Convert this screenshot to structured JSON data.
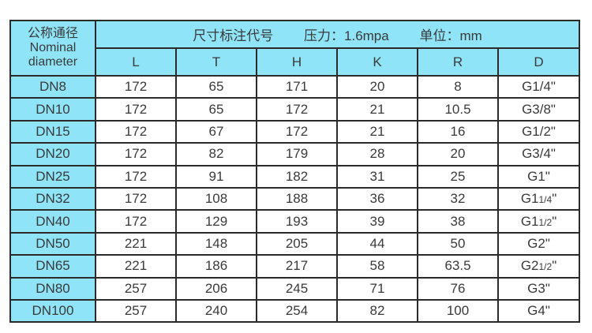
{
  "header": {
    "nominal_cn": "公称通径",
    "nominal_en_1": "Nominal",
    "nominal_en_2": "diameter",
    "dims_label": "尺寸标注代号",
    "pressure": "压力：1.6mpa",
    "unit": "单位：mm",
    "columns": [
      "L",
      "T",
      "H",
      "K",
      "R",
      "D"
    ]
  },
  "colors": {
    "header_bg": "#8fe4f8",
    "border": "#2a2a2a"
  },
  "rows": [
    {
      "dn": "DN8",
      "L": "172",
      "T": "65",
      "H": "171",
      "K": "20",
      "R": "8",
      "D": {
        "main": "G1/4\"",
        "frac": "",
        "suffix": ""
      }
    },
    {
      "dn": "DN10",
      "L": "172",
      "T": "65",
      "H": "172",
      "K": "21",
      "R": "10.5",
      "D": {
        "main": "G3/8\"",
        "frac": "",
        "suffix": ""
      }
    },
    {
      "dn": "DN15",
      "L": "172",
      "T": "67",
      "H": "172",
      "K": "21",
      "R": "16",
      "D": {
        "main": "G1/2\"",
        "frac": "",
        "suffix": ""
      }
    },
    {
      "dn": "DN20",
      "L": "172",
      "T": "82",
      "H": "179",
      "K": "28",
      "R": "20",
      "D": {
        "main": "G3/4\"",
        "frac": "",
        "suffix": ""
      }
    },
    {
      "dn": "DN25",
      "L": "172",
      "T": "91",
      "H": "182",
      "K": "31",
      "R": "25",
      "D": {
        "main": "G1\"",
        "frac": "",
        "suffix": ""
      }
    },
    {
      "dn": "DN32",
      "L": "172",
      "T": "108",
      "H": "188",
      "K": "36",
      "R": "32",
      "D": {
        "main": "G1",
        "frac": "1/4",
        "suffix": "\""
      }
    },
    {
      "dn": "DN40",
      "L": "172",
      "T": "129",
      "H": "193",
      "K": "39",
      "R": "38",
      "D": {
        "main": "G1",
        "frac": "1/2",
        "suffix": "\""
      }
    },
    {
      "dn": "DN50",
      "L": "221",
      "T": "148",
      "H": "205",
      "K": "44",
      "R": "50",
      "D": {
        "main": "G2\"",
        "frac": "",
        "suffix": ""
      }
    },
    {
      "dn": "DN65",
      "L": "221",
      "T": "186",
      "H": "217",
      "K": "58",
      "R": "63.5",
      "D": {
        "main": "G2",
        "frac": "1/2",
        "suffix": "\""
      }
    },
    {
      "dn": "DN80",
      "L": "257",
      "T": "206",
      "H": "245",
      "K": "71",
      "R": "76",
      "D": {
        "main": "G3\"",
        "frac": "",
        "suffix": ""
      }
    },
    {
      "dn": "DN100",
      "L": "257",
      "T": "240",
      "H": "254",
      "K": "82",
      "R": "100",
      "D": {
        "main": "G4\"",
        "frac": "",
        "suffix": ""
      }
    }
  ]
}
